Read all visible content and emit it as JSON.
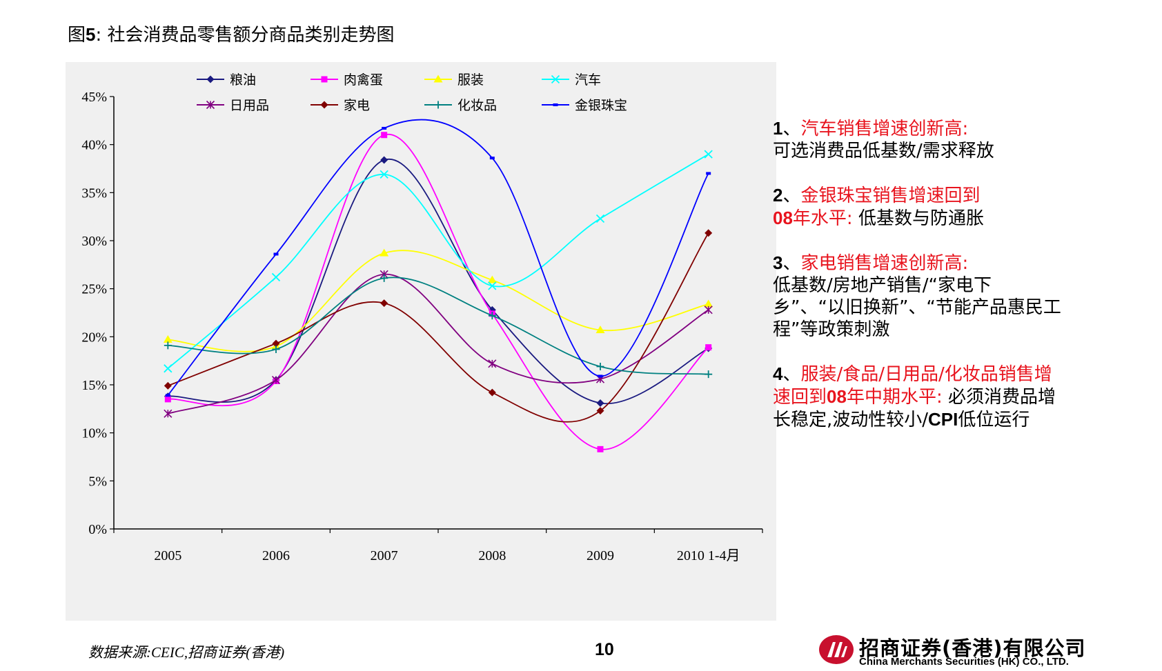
{
  "title": {
    "prefix": "图",
    "num": "5",
    "text": ":  社会消费品零售额分商品类别走势图"
  },
  "chart_data": {
    "type": "line",
    "categories": [
      "2005",
      "2006",
      "2007",
      "2008",
      "2009",
      "2010 1-4月"
    ],
    "yticks": [
      "0%",
      "5%",
      "10%",
      "15%",
      "20%",
      "25%",
      "30%",
      "35%",
      "40%",
      "45%"
    ],
    "ylim": [
      0,
      45
    ],
    "legend_placement": "top",
    "series": [
      {
        "name": "粮油",
        "color": "#1a1a80",
        "marker": "diamond",
        "values": [
          13.8,
          15.5,
          38.4,
          22.8,
          13.1,
          18.8
        ]
      },
      {
        "name": "肉禽蛋",
        "color": "#ff00ff",
        "marker": "square",
        "values": [
          13.5,
          15.4,
          41.0,
          22.4,
          8.3,
          18.9
        ]
      },
      {
        "name": "服装",
        "color": "#ffff00",
        "marker": "triangle",
        "values": [
          19.7,
          19.0,
          28.7,
          25.9,
          20.7,
          23.4
        ]
      },
      {
        "name": "汽车",
        "color": "#00ffff",
        "marker": "x",
        "values": [
          16.7,
          26.2,
          36.9,
          25.3,
          32.3,
          39.0
        ]
      },
      {
        "name": "日用品",
        "color": "#800080",
        "marker": "star",
        "values": [
          12.0,
          15.5,
          26.5,
          17.2,
          15.6,
          22.8
        ]
      },
      {
        "name": "家电",
        "color": "#800000",
        "marker": "diamond",
        "values": [
          14.9,
          19.3,
          23.5,
          14.2,
          12.3,
          30.8
        ]
      },
      {
        "name": "化妆品",
        "color": "#008080",
        "marker": "plus",
        "values": [
          19.1,
          18.7,
          26.1,
          22.2,
          16.9,
          16.1
        ]
      },
      {
        "name": "金银珠宝",
        "color": "#0000ff",
        "marker": "dash",
        "values": [
          13.9,
          28.6,
          41.7,
          38.6,
          15.9,
          37.0
        ]
      }
    ]
  },
  "notes": [
    {
      "num": "1",
      "sep": "、",
      "head": "汽车销售增速创新高:",
      "body": "可选消费品低基数/需求释放"
    },
    {
      "num": "2",
      "sep": "、",
      "head": "金银珠宝销售增速回到",
      "head2": "08",
      "head3": "年水平:",
      "body": " 低基数与防通胀"
    },
    {
      "num": "3",
      "sep": "、",
      "head": "家电销售增速创新高:",
      "body": "低基数/房地产销售/“家电下乡”、“以旧换新”、“节能产品惠民工程”等政策刺激"
    },
    {
      "num": "4",
      "sep": "、",
      "head": "服装/食品/日用品/化妆品销售增速回到",
      "head2": "08",
      "head3": "年中期水平:",
      "body": " 必须消费品增长稳定,波动性较小/",
      "body_latin": "CPI",
      "body_tail": "低位运行"
    }
  ],
  "footer": {
    "source": "数据来源:CEIC,招商证券(香港)",
    "page": "10",
    "logo_cn": "招商证券(香港)有限公司",
    "logo_en": "China Merchants Securities (HK) CO., LTD.",
    "logo_color": "#c8102e"
  }
}
